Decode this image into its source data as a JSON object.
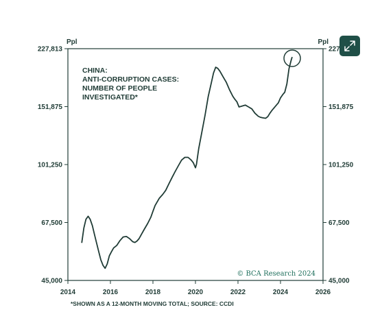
{
  "chart_data": {
    "type": "line",
    "title_lines": [
      "CHINA:",
      "ANTI-CORRUPTION CASES:",
      "NUMBER OF PEOPLE",
      "INVESTIGATED*"
    ],
    "left_unit": "Ppl",
    "right_unit": "Ppl",
    "y_scale": "log",
    "ylim": [
      45000,
      227813
    ],
    "y_ticks": [
      45000,
      67500,
      101250,
      151875,
      227813
    ],
    "y_tick_labels": [
      "45,000",
      "67,500",
      "101,250",
      "151,875",
      "227,813"
    ],
    "xlim": [
      2014,
      2026
    ],
    "x_ticks": [
      2014,
      2016,
      2018,
      2020,
      2022,
      2024,
      2026
    ],
    "x_tick_labels": [
      "2014",
      "2016",
      "2018",
      "2020",
      "2022",
      "2024",
      "2026"
    ],
    "footnote": "*SHOWN AS A 12-MONTH MOVING TOTAL; SOURCE: CCDI",
    "copyright": "© BCA Research 2024",
    "line_color": "#1f3b35",
    "axis_color": "#1f3b35",
    "annotation": {
      "type": "circle",
      "x": 2024.55,
      "y": 213000
    },
    "series": [
      {
        "x": [
          2014.65,
          2014.75,
          2014.85,
          2014.95,
          2015.05,
          2015.15,
          2015.25,
          2015.35,
          2015.45,
          2015.55,
          2015.65,
          2015.75,
          2015.85,
          2015.95,
          2016.05,
          2016.15,
          2016.3,
          2016.45,
          2016.6,
          2016.75,
          2016.9,
          2017.05,
          2017.15,
          2017.25,
          2017.35,
          2017.45,
          2017.6,
          2017.75,
          2017.9,
          2018.0,
          2018.1,
          2018.3,
          2018.45,
          2018.6,
          2018.75,
          2018.9,
          2019.05,
          2019.2,
          2019.35,
          2019.5,
          2019.65,
          2019.8,
          2019.9,
          2020.0,
          2020.05,
          2020.15,
          2020.3,
          2020.45,
          2020.6,
          2020.75,
          2020.85,
          2020.95,
          2021.05,
          2021.15,
          2021.3,
          2021.45,
          2021.6,
          2021.75,
          2021.85,
          2021.95,
          2022.05,
          2022.2,
          2022.35,
          2022.5,
          2022.65,
          2022.8,
          2022.95,
          2023.05,
          2023.15,
          2023.3,
          2023.4,
          2023.5,
          2023.6,
          2023.75,
          2023.9,
          2024.0,
          2024.1,
          2024.2,
          2024.3,
          2024.4,
          2024.5,
          2024.55
        ],
        "values": [
          58500,
          65000,
          69000,
          70500,
          69000,
          66000,
          62000,
          58500,
          55000,
          52000,
          50000,
          49000,
          50500,
          53500,
          55000,
          56500,
          57500,
          59500,
          61000,
          61200,
          60300,
          59000,
          58700,
          59300,
          60300,
          62000,
          64500,
          67000,
          70000,
          73000,
          76000,
          80000,
          82000,
          84500,
          88500,
          92500,
          96500,
          100500,
          104500,
          106500,
          106500,
          104500,
          102500,
          99000,
          101500,
          113000,
          127000,
          143000,
          163000,
          180000,
          192000,
          200000,
          198500,
          194500,
          187000,
          180000,
          171000,
          163500,
          160000,
          157000,
          151500,
          152500,
          153500,
          151500,
          149500,
          145000,
          142000,
          141000,
          140500,
          140000,
          141500,
          145000,
          148000,
          152000,
          156000,
          161500,
          165000,
          168000,
          178000,
          198000,
          210000,
          215000
        ]
      }
    ]
  }
}
